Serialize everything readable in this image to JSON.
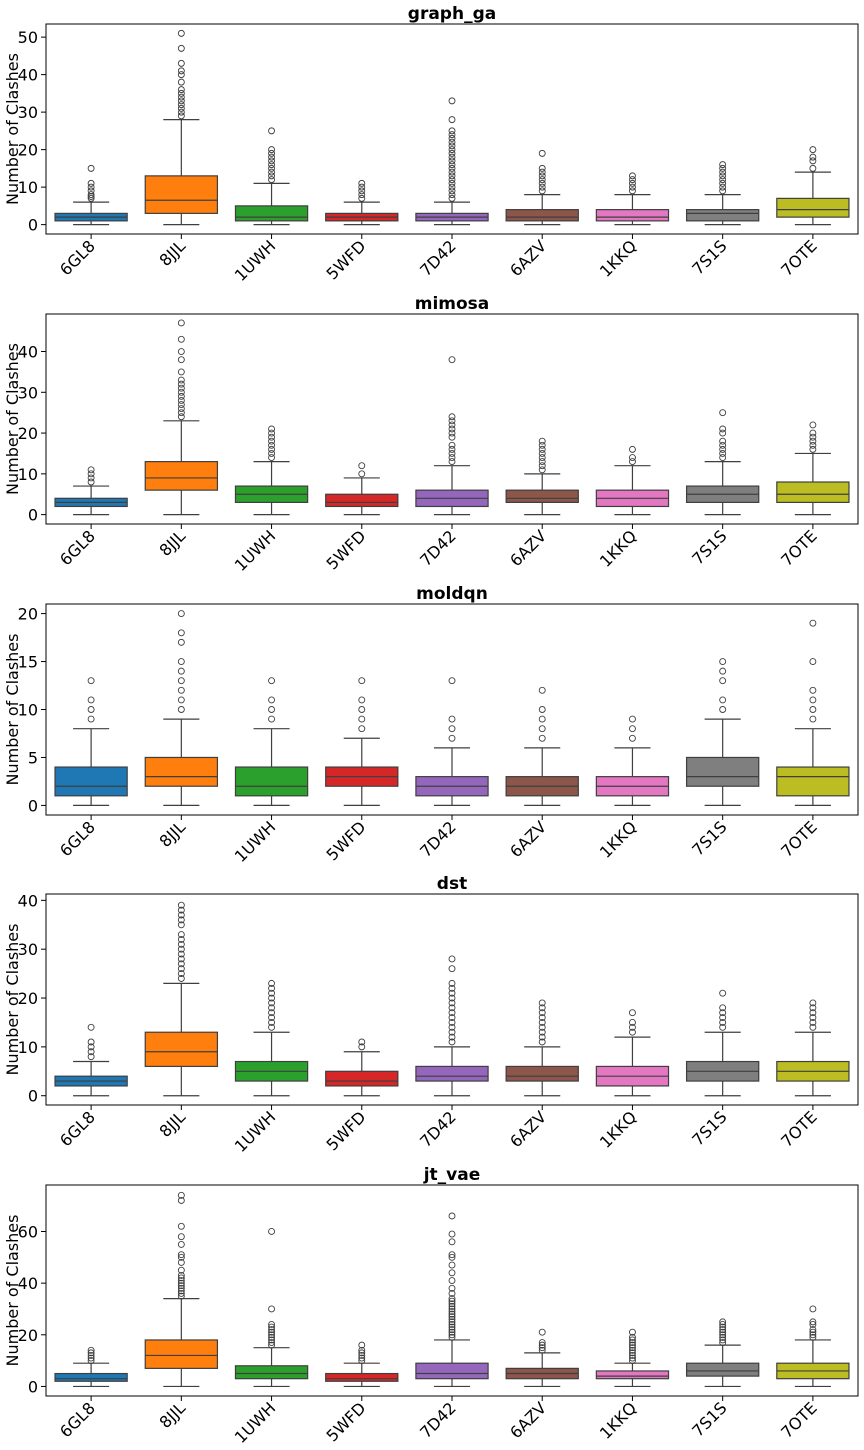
{
  "chart_data": [
    {
      "type": "box",
      "title": "graph_ga",
      "ylabel": "Number of Clashes",
      "xlabel": "",
      "categories": [
        "6GL8",
        "8JJL",
        "1UWH",
        "5WFD",
        "7D42",
        "6AZV",
        "1KKQ",
        "7S1S",
        "7OTE"
      ],
      "ylim": [
        -2.5,
        53.5
      ],
      "yticks": [
        0,
        10,
        20,
        30,
        40,
        50
      ],
      "grid": false,
      "boxes": [
        {
          "min": 0,
          "q1": 1,
          "median": 2,
          "q3": 3,
          "max": 6,
          "outliers": [
            7,
            7.5,
            8,
            9,
            10,
            11,
            15
          ]
        },
        {
          "min": 0,
          "q1": 3,
          "median": 6.5,
          "q3": 13,
          "max": 28,
          "outliers": [
            29,
            30,
            31,
            32,
            33,
            34,
            35,
            36,
            38,
            40,
            41,
            43,
            47,
            51
          ]
        },
        {
          "min": 0,
          "q1": 1,
          "median": 2,
          "q3": 5,
          "max": 11,
          "outliers": [
            12,
            13,
            14,
            15,
            16,
            17,
            18,
            19,
            20,
            25
          ]
        },
        {
          "min": 0,
          "q1": 1,
          "median": 2,
          "q3": 3,
          "max": 6,
          "outliers": [
            7,
            8,
            9,
            10,
            11
          ]
        },
        {
          "min": 0,
          "q1": 1,
          "median": 2,
          "q3": 3,
          "max": 6,
          "outliers": [
            7,
            8,
            9,
            10,
            11,
            12,
            13,
            14,
            15,
            16,
            17,
            18,
            19,
            20,
            21,
            22,
            23,
            24,
            25,
            28,
            33
          ]
        },
        {
          "min": 0,
          "q1": 1,
          "median": 2,
          "q3": 4,
          "max": 8,
          "outliers": [
            9,
            10,
            11,
            12,
            13,
            14,
            15,
            19
          ]
        },
        {
          "min": 0,
          "q1": 1,
          "median": 2,
          "q3": 4,
          "max": 8,
          "outliers": [
            9,
            10,
            11,
            12,
            13
          ]
        },
        {
          "min": 0,
          "q1": 1,
          "median": 3,
          "q3": 4,
          "max": 8,
          "outliers": [
            9,
            10,
            11,
            12,
            13,
            14,
            15,
            16
          ]
        },
        {
          "min": 0,
          "q1": 2,
          "median": 4,
          "q3": 7,
          "max": 14,
          "outliers": [
            15,
            17,
            18,
            20
          ]
        }
      ]
    },
    {
      "type": "box",
      "title": "mimosa",
      "ylabel": "Number of Clashes",
      "xlabel": "",
      "categories": [
        "6GL8",
        "8JJL",
        "1UWH",
        "5WFD",
        "7D42",
        "6AZV",
        "1KKQ",
        "7S1S",
        "7OTE"
      ],
      "ylim": [
        -2.3,
        49.2
      ],
      "yticks": [
        0,
        10,
        20,
        30,
        40
      ],
      "grid": false,
      "boxes": [
        {
          "min": 0,
          "q1": 2,
          "median": 3,
          "q3": 4,
          "max": 7,
          "outliers": [
            8,
            9,
            10,
            11
          ]
        },
        {
          "min": 0,
          "q1": 6,
          "median": 9,
          "q3": 13,
          "max": 23,
          "outliers": [
            24,
            25,
            26,
            27,
            28,
            29,
            30,
            31,
            32,
            33,
            35,
            38,
            40,
            43,
            47
          ]
        },
        {
          "min": 0,
          "q1": 3,
          "median": 5,
          "q3": 7,
          "max": 13,
          "outliers": [
            14,
            15,
            16,
            17,
            18,
            19,
            20,
            21
          ]
        },
        {
          "min": 0,
          "q1": 2,
          "median": 3,
          "q3": 5,
          "max": 9,
          "outliers": [
            10,
            12
          ]
        },
        {
          "min": 0,
          "q1": 2,
          "median": 4,
          "q3": 6,
          "max": 12,
          "outliers": [
            13,
            14,
            15,
            16,
            17,
            19,
            20,
            21,
            22,
            23,
            24,
            38
          ]
        },
        {
          "min": 0,
          "q1": 3,
          "median": 4,
          "q3": 6,
          "max": 10,
          "outliers": [
            11,
            12,
            13,
            14,
            15,
            16,
            17,
            18
          ]
        },
        {
          "min": 0,
          "q1": 2,
          "median": 4,
          "q3": 6,
          "max": 12,
          "outliers": [
            13,
            14,
            16
          ]
        },
        {
          "min": 0,
          "q1": 3,
          "median": 5,
          "q3": 7,
          "max": 13,
          "outliers": [
            14,
            15,
            16,
            17,
            18,
            20,
            21,
            25
          ]
        },
        {
          "min": 0,
          "q1": 3,
          "median": 5,
          "q3": 8,
          "max": 15,
          "outliers": [
            16,
            17,
            18,
            19,
            20,
            22
          ]
        }
      ]
    },
    {
      "type": "box",
      "title": "moldqn",
      "ylabel": "Number of Clashes",
      "xlabel": "",
      "categories": [
        "6GL8",
        "8JJL",
        "1UWH",
        "5WFD",
        "7D42",
        "6AZV",
        "1KKQ",
        "7S1S",
        "7OTE"
      ],
      "ylim": [
        -1,
        21
      ],
      "yticks": [
        0,
        5,
        10,
        15,
        20
      ],
      "grid": false,
      "boxes": [
        {
          "min": 0,
          "q1": 1,
          "median": 2,
          "q3": 4,
          "max": 8,
          "outliers": [
            9,
            10,
            11,
            13
          ]
        },
        {
          "min": 0,
          "q1": 2,
          "median": 3,
          "q3": 5,
          "max": 9,
          "outliers": [
            10,
            11,
            12,
            13,
            14,
            15,
            17,
            18,
            20
          ]
        },
        {
          "min": 0,
          "q1": 1,
          "median": 2,
          "q3": 4,
          "max": 8,
          "outliers": [
            9,
            10,
            11,
            13
          ]
        },
        {
          "min": 0,
          "q1": 2,
          "median": 3,
          "q3": 4,
          "max": 7,
          "outliers": [
            8,
            9,
            10,
            11,
            13
          ]
        },
        {
          "min": 0,
          "q1": 1,
          "median": 2,
          "q3": 3,
          "max": 6,
          "outliers": [
            7,
            8,
            9,
            13
          ]
        },
        {
          "min": 0,
          "q1": 1,
          "median": 2,
          "q3": 3,
          "max": 6,
          "outliers": [
            7,
            8,
            9,
            10,
            12
          ]
        },
        {
          "min": 0,
          "q1": 1,
          "median": 2,
          "q3": 3,
          "max": 6,
          "outliers": [
            7,
            8,
            9
          ]
        },
        {
          "min": 0,
          "q1": 2,
          "median": 3,
          "q3": 5,
          "max": 9,
          "outliers": [
            10,
            11,
            13,
            14,
            15
          ]
        },
        {
          "min": 0,
          "q1": 1,
          "median": 3,
          "q3": 4,
          "max": 8,
          "outliers": [
            9,
            10,
            11,
            12,
            15,
            19
          ]
        }
      ]
    },
    {
      "type": "box",
      "title": "dst",
      "ylabel": "Number of Clashes",
      "xlabel": "",
      "categories": [
        "6GL8",
        "8JJL",
        "1UWH",
        "5WFD",
        "7D42",
        "6AZV",
        "1KKQ",
        "7S1S",
        "7OTE"
      ],
      "ylim": [
        -1.9,
        41.3
      ],
      "yticks": [
        0,
        10,
        20,
        30,
        40
      ],
      "grid": false,
      "boxes": [
        {
          "min": 0,
          "q1": 2,
          "median": 3,
          "q3": 4,
          "max": 7,
          "outliers": [
            8,
            9,
            10,
            11,
            14
          ]
        },
        {
          "min": 0,
          "q1": 6,
          "median": 9,
          "q3": 13,
          "max": 23,
          "outliers": [
            24,
            25,
            26,
            27,
            28,
            29,
            30,
            31,
            32,
            33,
            35,
            36,
            37,
            38,
            39
          ]
        },
        {
          "min": 0,
          "q1": 3,
          "median": 5,
          "q3": 7,
          "max": 13,
          "outliers": [
            14,
            15,
            16,
            17,
            18,
            19,
            20,
            21,
            22,
            23
          ]
        },
        {
          "min": 0,
          "q1": 2,
          "median": 3,
          "q3": 5,
          "max": 9,
          "outliers": [
            10,
            11
          ]
        },
        {
          "min": 0,
          "q1": 3,
          "median": 4,
          "q3": 6,
          "max": 10,
          "outliers": [
            11,
            12,
            13,
            14,
            15,
            16,
            17,
            18,
            19,
            20,
            21,
            22,
            23,
            26,
            28
          ]
        },
        {
          "min": 0,
          "q1": 3,
          "median": 4,
          "q3": 6,
          "max": 10,
          "outliers": [
            11,
            12,
            13,
            14,
            15,
            16,
            17,
            18,
            19
          ]
        },
        {
          "min": 0,
          "q1": 2,
          "median": 4,
          "q3": 6,
          "max": 12,
          "outliers": [
            13,
            14,
            15,
            17
          ]
        },
        {
          "min": 0,
          "q1": 3,
          "median": 5,
          "q3": 7,
          "max": 13,
          "outliers": [
            14,
            15,
            16,
            17,
            18,
            21
          ]
        },
        {
          "min": 0,
          "q1": 3,
          "median": 5,
          "q3": 7,
          "max": 13,
          "outliers": [
            14,
            15,
            16,
            17,
            18,
            19
          ]
        }
      ]
    },
    {
      "type": "box",
      "title": "jt_vae",
      "ylabel": "Number of Clashes",
      "xlabel": "",
      "categories": [
        "6GL8",
        "8JJL",
        "1UWH",
        "5WFD",
        "7D42",
        "6AZV",
        "1KKQ",
        "7S1S",
        "7OTE"
      ],
      "ylim": [
        -3.7,
        78
      ],
      "yticks": [
        0,
        20,
        40,
        60
      ],
      "grid": false,
      "boxes": [
        {
          "min": 0,
          "q1": 2,
          "median": 3,
          "q3": 5,
          "max": 9,
          "outliers": [
            10,
            11,
            12,
            13,
            14
          ]
        },
        {
          "min": 0,
          "q1": 7,
          "median": 12,
          "q3": 18,
          "max": 34,
          "outliers": [
            35,
            36,
            37,
            38,
            39,
            40,
            41,
            42,
            43,
            45,
            48,
            50,
            51,
            55,
            58,
            62,
            72,
            74
          ]
        },
        {
          "min": 0,
          "q1": 3,
          "median": 5,
          "q3": 8,
          "max": 15,
          "outliers": [
            16,
            17,
            18,
            19,
            20,
            21,
            22,
            23,
            24,
            30,
            60
          ]
        },
        {
          "min": 0,
          "q1": 2,
          "median": 3,
          "q3": 5,
          "max": 9,
          "outliers": [
            10,
            11,
            12,
            13,
            14,
            16
          ]
        },
        {
          "min": 0,
          "q1": 3,
          "median": 5,
          "q3": 9,
          "max": 18,
          "outliers": [
            19,
            20,
            21,
            22,
            23,
            24,
            25,
            26,
            27,
            28,
            29,
            30,
            31,
            32,
            33,
            34,
            36,
            38,
            41,
            44,
            47,
            50,
            51,
            56,
            59,
            66
          ]
        },
        {
          "min": 0,
          "q1": 3,
          "median": 5,
          "q3": 7,
          "max": 13,
          "outliers": [
            14,
            15,
            16,
            17,
            21
          ]
        },
        {
          "min": 0,
          "q1": 3,
          "median": 4,
          "q3": 6,
          "max": 9,
          "outliers": [
            10,
            11,
            12,
            13,
            14,
            15,
            16,
            17,
            18,
            19,
            21
          ]
        },
        {
          "min": 0,
          "q1": 4,
          "median": 6,
          "q3": 9,
          "max": 16,
          "outliers": [
            17,
            18,
            19,
            20,
            21,
            22,
            23,
            24,
            25
          ]
        },
        {
          "min": 0,
          "q1": 3,
          "median": 6,
          "q3": 9,
          "max": 18,
          "outliers": [
            19,
            20,
            21,
            22,
            24,
            25,
            30
          ]
        }
      ]
    }
  ],
  "colors": {
    "palette": [
      "#1f77b4",
      "#ff7f0e",
      "#2ca02c",
      "#d62728",
      "#9467bd",
      "#8c564b",
      "#e377c2",
      "#7f7f7f",
      "#bcbd22"
    ],
    "line": "#3f3f3f",
    "axis": "#000000",
    "background": "#ffffff"
  }
}
